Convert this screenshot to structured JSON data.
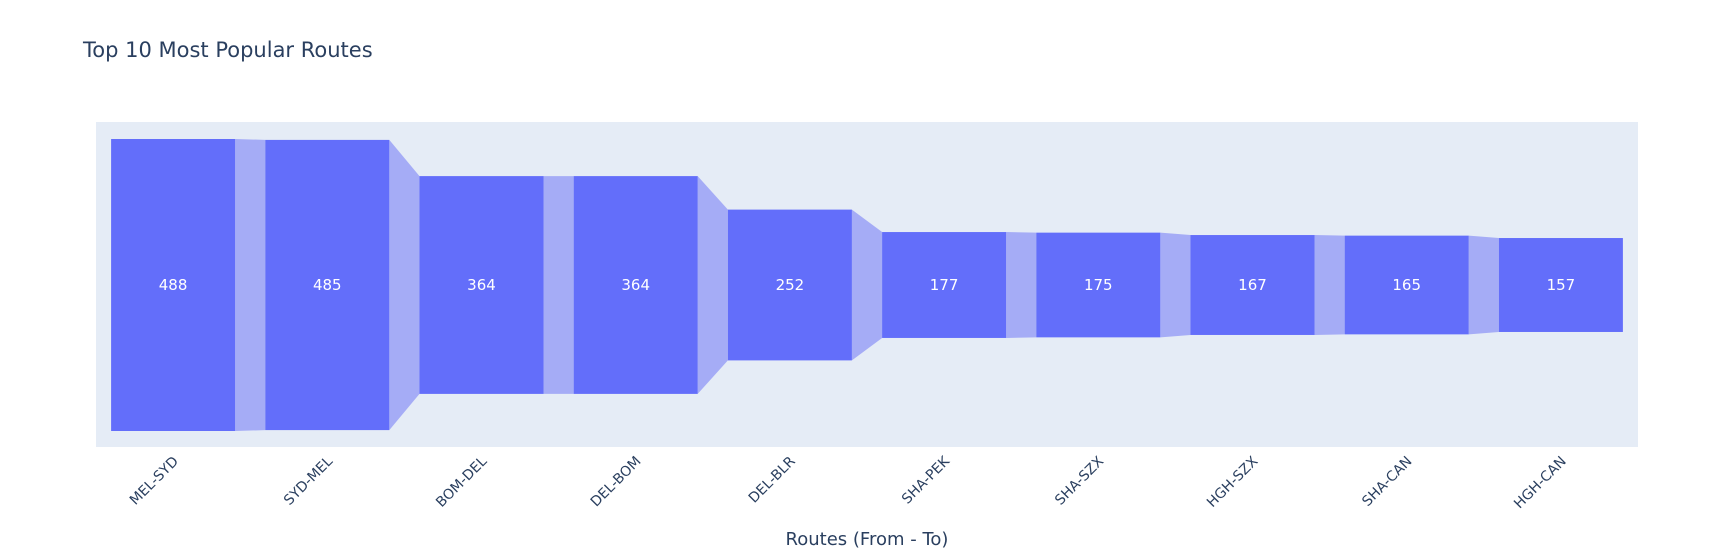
{
  "chart_data": {
    "type": "funnel",
    "title": "Top 10 Most Popular Routes",
    "xlabel": "Routes (From - To)",
    "ylabel": "",
    "categories": [
      "MEL-SYD",
      "SYD-MEL",
      "BOM-DEL",
      "DEL-BOM",
      "DEL-BLR",
      "SHA-PEK",
      "SHA-SZX",
      "HGH-SZX",
      "SHA-CAN",
      "HGH-CAN"
    ],
    "values": [
      488,
      485,
      364,
      364,
      252,
      177,
      175,
      167,
      165,
      157
    ],
    "colors": {
      "bar": "#636efa",
      "connector": "#a5acf6",
      "plot_bg": "#e5ecf6",
      "text": "#2a3f5f"
    },
    "grid": false,
    "legend": "none"
  }
}
